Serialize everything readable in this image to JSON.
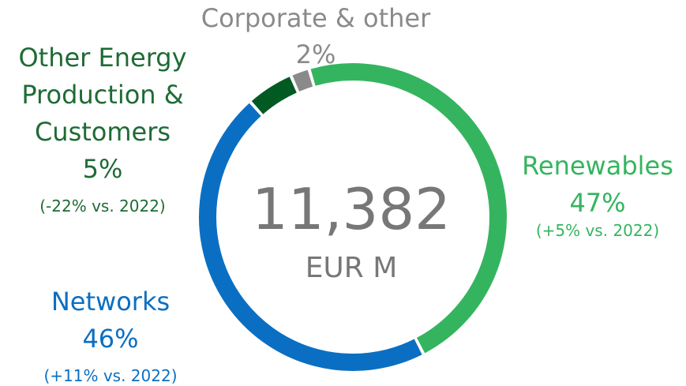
{
  "chart_data": {
    "type": "donut",
    "categories": [
      "Renewables",
      "Networks",
      "Other Energy Production & Customers",
      "Corporate & other"
    ],
    "values": [
      47,
      46,
      5,
      2
    ],
    "value_labels": [
      "47%",
      "46%",
      "5%",
      "2%"
    ],
    "annotations": [
      "(+5% vs. 2022)",
      "(+11% vs. 2022)",
      "(-22% vs. 2022)",
      null
    ],
    "colors": [
      "#35b45f",
      "#0a6fc2",
      "#005a22",
      "#8a8a8a"
    ],
    "label_colors": [
      "#35b45f",
      "#0a6fc2",
      "#1e6b35",
      "#8a8a8a"
    ],
    "center_value": "11,382",
    "center_unit": "EUR M"
  }
}
